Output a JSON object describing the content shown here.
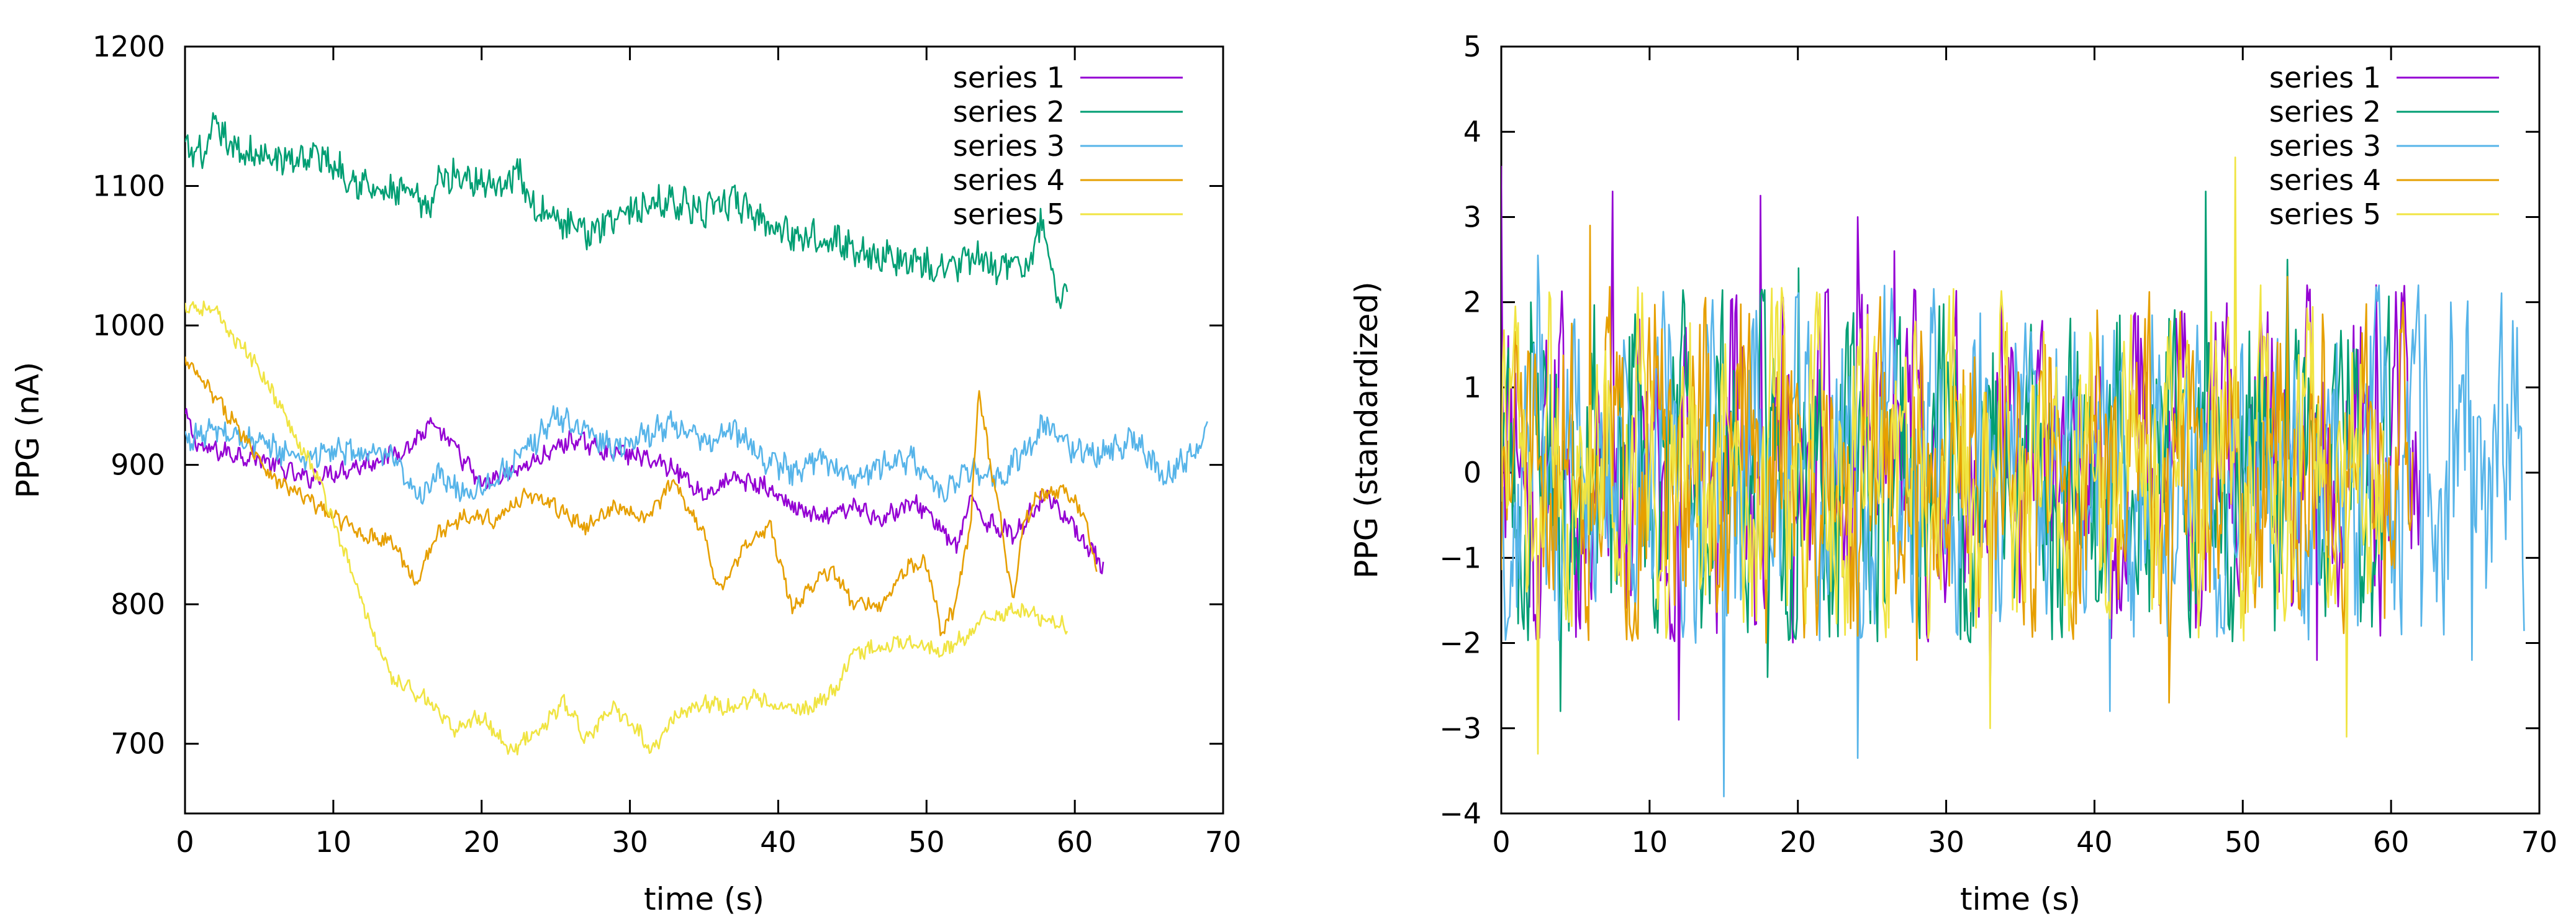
{
  "chart_data": [
    {
      "type": "line",
      "title": "",
      "xlabel": "time (s)",
      "ylabel": "PPG (nA)",
      "xlim": [
        0,
        70
      ],
      "ylim": [
        650,
        1200
      ],
      "xticks": [
        "0",
        "10",
        "20",
        "30",
        "40",
        "50",
        "60",
        "70"
      ],
      "yticks": [
        "700",
        "800",
        "900",
        "1000",
        "1100",
        "1200"
      ],
      "xtick_values": [
        0,
        10,
        20,
        30,
        40,
        50,
        60,
        70
      ],
      "ytick_values": [
        700,
        800,
        900,
        1000,
        1100,
        1200
      ],
      "legend_position": "top-right",
      "series": [
        {
          "name": "series 1",
          "color": "#9400d3",
          "noise": 6,
          "points": [
            [
              0,
              935
            ],
            [
              1,
              912
            ],
            [
              5,
              905
            ],
            [
              8,
              890
            ],
            [
              12,
              900
            ],
            [
              15,
              912
            ],
            [
              16.5,
              928
            ],
            [
              18,
              915
            ],
            [
              20,
              885
            ],
            [
              22,
              895
            ],
            [
              24,
              905
            ],
            [
              26,
              918
            ],
            [
              28,
              912
            ],
            [
              31,
              905
            ],
            [
              33,
              898
            ],
            [
              35,
              878
            ],
            [
              37,
              890
            ],
            [
              39,
              885
            ],
            [
              41,
              870
            ],
            [
              43,
              860
            ],
            [
              45,
              870
            ],
            [
              47,
              862
            ],
            [
              49,
              872
            ],
            [
              50,
              868
            ],
            [
              52,
              840
            ],
            [
              53,
              875
            ],
            [
              54,
              860
            ],
            [
              56,
              850
            ],
            [
              58,
              880
            ],
            [
              60,
              855
            ],
            [
              62,
              825
            ]
          ]
        },
        {
          "name": "series 2",
          "color": "#009e73",
          "noise": 10,
          "points": [
            [
              0,
              1125
            ],
            [
              1.5,
              1122
            ],
            [
              2,
              1145
            ],
            [
              3,
              1128
            ],
            [
              6,
              1118
            ],
            [
              9,
              1122
            ],
            [
              11,
              1108
            ],
            [
              13,
              1095
            ],
            [
              15,
              1095
            ],
            [
              16.5,
              1082
            ],
            [
              17,
              1105
            ],
            [
              19,
              1108
            ],
            [
              21,
              1100
            ],
            [
              22.5,
              1110
            ],
            [
              23.5,
              1085
            ],
            [
              25,
              1075
            ],
            [
              27,
              1065
            ],
            [
              29,
              1080
            ],
            [
              31,
              1085
            ],
            [
              33,
              1090
            ],
            [
              35,
              1080
            ],
            [
              37,
              1090
            ],
            [
              39,
              1075
            ],
            [
              41,
              1065
            ],
            [
              43,
              1065
            ],
            [
              45,
              1055
            ],
            [
              47,
              1050
            ],
            [
              49,
              1045
            ],
            [
              51,
              1040
            ],
            [
              53,
              1048
            ],
            [
              55,
              1042
            ],
            [
              57,
              1045
            ],
            [
              57.8,
              1075
            ],
            [
              58.5,
              1030
            ],
            [
              59,
              1018
            ],
            [
              59.5,
              1028
            ]
          ]
        },
        {
          "name": "series 3",
          "color": "#56b4e9",
          "noise": 8,
          "points": [
            [
              0,
              918
            ],
            [
              2,
              925
            ],
            [
              5,
              915
            ],
            [
              8,
              905
            ],
            [
              10,
              910
            ],
            [
              12,
              908
            ],
            [
              14,
              905
            ],
            [
              15,
              885
            ],
            [
              16,
              880
            ],
            [
              17,
              892
            ],
            [
              19,
              880
            ],
            [
              21,
              890
            ],
            [
              23,
              910
            ],
            [
              25,
              935
            ],
            [
              27,
              925
            ],
            [
              29,
              912
            ],
            [
              31,
              922
            ],
            [
              33,
              930
            ],
            [
              35,
              915
            ],
            [
              37,
              925
            ],
            [
              39,
              905
            ],
            [
              41,
              895
            ],
            [
              43,
              905
            ],
            [
              45,
              890
            ],
            [
              47,
              900
            ],
            [
              49,
              905
            ],
            [
              51,
              880
            ],
            [
              53,
              895
            ],
            [
              55,
              890
            ],
            [
              57,
              915
            ],
            [
              58,
              930
            ],
            [
              60,
              910
            ],
            [
              62,
              908
            ],
            [
              64,
              920
            ],
            [
              66,
              890
            ],
            [
              68,
              910
            ],
            [
              69,
              925
            ]
          ]
        },
        {
          "name": "series 4",
          "color": "#e69f00",
          "noise": 5,
          "points": [
            [
              0,
              975
            ],
            [
              3,
              935
            ],
            [
              6,
              890
            ],
            [
              9,
              870
            ],
            [
              12,
              850
            ],
            [
              14,
              845
            ],
            [
              15.5,
              815
            ],
            [
              17,
              850
            ],
            [
              19,
              865
            ],
            [
              21,
              860
            ],
            [
              23,
              880
            ],
            [
              25,
              870
            ],
            [
              27,
              855
            ],
            [
              29,
              870
            ],
            [
              31,
              860
            ],
            [
              33,
              888
            ],
            [
              35,
              850
            ],
            [
              36,
              810
            ],
            [
              38,
              845
            ],
            [
              39.5,
              855
            ],
            [
              41,
              795
            ],
            [
              42,
              810
            ],
            [
              43,
              825
            ],
            [
              44,
              820
            ],
            [
              45,
              800
            ],
            [
              47,
              800
            ],
            [
              48.5,
              825
            ],
            [
              50,
              830
            ],
            [
              51,
              780
            ],
            [
              52,
              800
            ],
            [
              53,
              860
            ],
            [
              53.5,
              955
            ],
            [
              54.3,
              900
            ],
            [
              55,
              860
            ],
            [
              55.8,
              800
            ],
            [
              56.5,
              855
            ],
            [
              57.5,
              880
            ],
            [
              59.5,
              880
            ],
            [
              60.5,
              865
            ],
            [
              61.5,
              828
            ]
          ]
        },
        {
          "name": "series 5",
          "color": "#f0e442",
          "noise": 5,
          "points": [
            [
              0,
              1015
            ],
            [
              2,
              1010
            ],
            [
              3,
              995
            ],
            [
              5,
              970
            ],
            [
              7,
              930
            ],
            [
              9,
              890
            ],
            [
              11,
              830
            ],
            [
              13,
              770
            ],
            [
              14,
              745
            ],
            [
              16,
              735
            ],
            [
              18,
              710
            ],
            [
              20,
              720
            ],
            [
              22,
              695
            ],
            [
              24,
              710
            ],
            [
              25.5,
              730
            ],
            [
              27,
              705
            ],
            [
              29,
              725
            ],
            [
              30.5,
              710
            ],
            [
              31.5,
              695
            ],
            [
              33,
              720
            ],
            [
              35,
              730
            ],
            [
              37,
              725
            ],
            [
              38.5,
              735
            ],
            [
              40,
              725
            ],
            [
              42,
              725
            ],
            [
              44,
              740
            ],
            [
              45,
              765
            ],
            [
              47,
              770
            ],
            [
              49,
              775
            ],
            [
              51,
              765
            ],
            [
              53,
              780
            ],
            [
              54,
              790
            ],
            [
              56,
              795
            ],
            [
              58,
              790
            ],
            [
              59.5,
              785
            ]
          ]
        }
      ]
    },
    {
      "type": "line",
      "title": "",
      "xlabel": "time (s)",
      "ylabel": "PPG (standardized)",
      "xlim": [
        0,
        70
      ],
      "ylim": [
        -4,
        5
      ],
      "xticks": [
        "0",
        "10",
        "20",
        "30",
        "40",
        "50",
        "60",
        "70"
      ],
      "yticks": [
        "−4",
        "−3",
        "−2",
        "−1",
        "0",
        "1",
        "2",
        "3",
        "4",
        "5"
      ],
      "xtick_values": [
        0,
        10,
        20,
        30,
        40,
        50,
        60,
        70
      ],
      "ytick_values": [
        -4,
        -3,
        -2,
        -1,
        0,
        1,
        2,
        3,
        4,
        5
      ],
      "legend_position": "top-right",
      "series": [
        {
          "name": "series 1",
          "color": "#9400d3",
          "xmax": 62,
          "seed": 11,
          "spikes": [
            [
              0,
              3.6
            ],
            [
              7.5,
              3.3
            ],
            [
              17.5,
              3.25
            ],
            [
              24,
              3.0
            ],
            [
              26.5,
              2.6
            ],
            [
              12,
              -2.9
            ],
            [
              33,
              -2.6
            ],
            [
              59,
              2.2
            ],
            [
              55,
              -2.2
            ]
          ]
        },
        {
          "name": "series 2",
          "color": "#009e73",
          "xmax": 60,
          "seed": 23,
          "spikes": [
            [
              2,
              2.0
            ],
            [
              4,
              -2.8
            ],
            [
              47.5,
              3.3
            ],
            [
              53,
              2.5
            ],
            [
              18,
              -2.4
            ],
            [
              20,
              2.4
            ]
          ]
        },
        {
          "name": "series 3",
          "color": "#56b4e9",
          "xmax": 69,
          "seed": 37,
          "spikes": [
            [
              2.5,
              2.55
            ],
            [
              15,
              -3.8
            ],
            [
              24,
              -3.35
            ],
            [
              41,
              -2.8
            ],
            [
              64,
              2.0
            ],
            [
              65.5,
              -2.2
            ],
            [
              68.5,
              1.7
            ],
            [
              62,
              -1.8
            ]
          ]
        },
        {
          "name": "series 4",
          "color": "#e69f00",
          "xmax": 61.5,
          "seed": 51,
          "spikes": [
            [
              6,
              2.9
            ],
            [
              53,
              2.3
            ],
            [
              45,
              -2.7
            ],
            [
              28,
              -2.2
            ]
          ]
        },
        {
          "name": "series 5",
          "color": "#f0e442",
          "xmax": 59.5,
          "seed": 73,
          "spikes": [
            [
              2.5,
              -3.3
            ],
            [
              49.5,
              3.7
            ],
            [
              33,
              -3.0
            ],
            [
              57,
              -3.1
            ]
          ]
        }
      ]
    }
  ]
}
